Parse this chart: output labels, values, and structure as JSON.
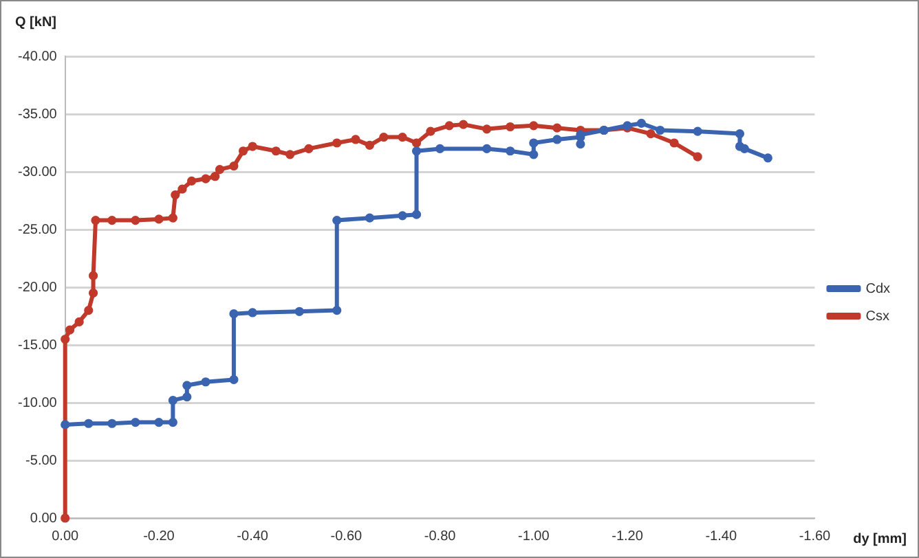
{
  "chart_data": {
    "type": "line",
    "xlabel": "dy [mm]",
    "ylabel": "Q [kN]",
    "xlim": [
      0,
      -1.6
    ],
    "xticks": [
      {
        "value": 0,
        "label": "0.00"
      },
      {
        "value": -0.2,
        "label": "-0.20"
      },
      {
        "value": -0.4,
        "label": "-0.40"
      },
      {
        "value": -0.6,
        "label": "-0.60"
      },
      {
        "value": -0.8,
        "label": "-0.80"
      },
      {
        "value": -1,
        "label": "-1.00"
      },
      {
        "value": -1.2,
        "label": "-1.20"
      },
      {
        "value": -1.4,
        "label": "-1.40"
      },
      {
        "value": -1.6,
        "label": "-1.60"
      }
    ],
    "ylim": [
      0,
      -40
    ],
    "yticks": [
      {
        "value": 0,
        "label": "0.00"
      },
      {
        "value": -5,
        "label": "-5.00"
      },
      {
        "value": -10,
        "label": "-10.00"
      },
      {
        "value": -15,
        "label": "-15.00"
      },
      {
        "value": -20,
        "label": "-20.00"
      },
      {
        "value": -25,
        "label": "-25.00"
      },
      {
        "value": -30,
        "label": "-30.00"
      },
      {
        "value": -35,
        "label": "-35.00"
      },
      {
        "value": -40,
        "label": "-40.00"
      }
    ],
    "grid": "y",
    "legend": "right",
    "marker": "circle",
    "line_style": "solid",
    "series": [
      {
        "name": "Cdx",
        "color": "#3a64b0",
        "x": [
          0,
          -0.05,
          -0.1,
          -0.15,
          -0.2,
          -0.23,
          -0.23,
          -0.26,
          -0.26,
          -0.3,
          -0.36,
          -0.36,
          -0.4,
          -0.5,
          -0.58,
          -0.58,
          -0.65,
          -0.72,
          -0.75,
          -0.75,
          -0.8,
          -0.9,
          -0.95,
          -1.0,
          -1.0,
          -1.05,
          -1.1,
          -1.1,
          -1.1,
          -1.15,
          -1.2,
          -1.23,
          -1.27,
          -1.35,
          -1.44,
          -1.44,
          -1.45,
          -1.5
        ],
        "values": [
          -8.1,
          -8.2,
          -8.2,
          -8.3,
          -8.3,
          -8.3,
          -10.2,
          -10.5,
          -11.5,
          -11.8,
          -12,
          -17.7,
          -17.8,
          -17.9,
          -18,
          -25.8,
          -26,
          -26.2,
          -26.3,
          -31.8,
          -32,
          -32,
          -31.8,
          -31.5,
          -32.5,
          -32.8,
          -33,
          -32.4,
          -33.2,
          -33.6,
          -34,
          -34.2,
          -33.6,
          -33.5,
          -33.3,
          -32.2,
          -32,
          -31.2
        ]
      },
      {
        "name": "Csx",
        "color": "#c0392b",
        "x": [
          0,
          0,
          -0.01,
          -0.03,
          -0.05,
          -0.06,
          -0.06,
          -0.065,
          -0.1,
          -0.15,
          -0.2,
          -0.23,
          -0.235,
          -0.25,
          -0.27,
          -0.3,
          -0.32,
          -0.33,
          -0.36,
          -0.38,
          -0.4,
          -0.45,
          -0.48,
          -0.52,
          -0.58,
          -0.62,
          -0.65,
          -0.68,
          -0.72,
          -0.75,
          -0.78,
          -0.82,
          -0.85,
          -0.9,
          -0.95,
          -1.0,
          -1.05,
          -1.1,
          -1.15,
          -1.2,
          -1.25,
          -1.3,
          -1.35
        ],
        "values": [
          0,
          -15.5,
          -16.3,
          -17,
          -18,
          -19.5,
          -21,
          -25.8,
          -25.8,
          -25.8,
          -25.9,
          -26,
          -28,
          -28.5,
          -29.2,
          -29.4,
          -29.6,
          -30.2,
          -30.5,
          -31.8,
          -32.2,
          -31.8,
          -31.5,
          -32,
          -32.5,
          -32.8,
          -32.3,
          -33,
          -33,
          -32.5,
          -33.5,
          -34,
          -34.1,
          -33.7,
          -33.9,
          -34,
          -33.8,
          -33.6,
          -33.6,
          -33.8,
          -33.3,
          -32.5,
          -31.3
        ]
      }
    ]
  }
}
